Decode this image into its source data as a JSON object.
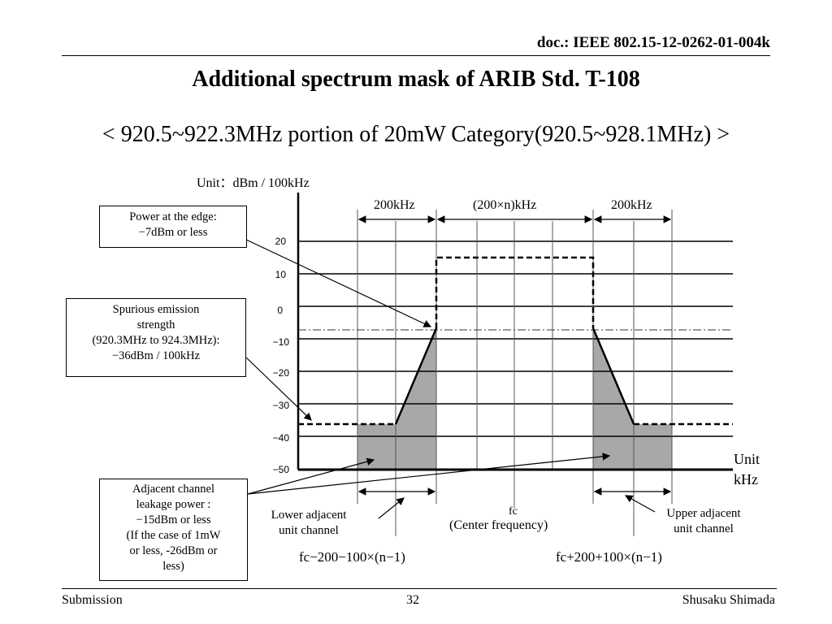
{
  "header": {
    "doc_id": "doc.: IEEE 802.15-12-0262-01-004k"
  },
  "title": "Additional spectrum mask of ARIB Std. T-108",
  "subtitle": "< 920.5~922.3MHz portion of 20mW Category(920.5~928.1MHz) >",
  "diagram": {
    "unit_label": "Unit：dBm / 100kHz",
    "x_unit_label": [
      "Unit",
      "kHz"
    ],
    "y_ticks": [
      "20",
      "10",
      "0",
      "−10",
      "−20",
      "−30",
      "−40",
      "−50"
    ],
    "dim_left": "200kHz",
    "dim_mid": "(200×n)kHz",
    "dim_right": "200kHz",
    "fc_label": "fc",
    "center_label": "(Center frequency)",
    "lower_label": [
      "Lower adjacent",
      "unit channel"
    ],
    "upper_label": [
      "Upper adjacent",
      "unit channel"
    ],
    "formula_left": "fc−200−100×(n−1)",
    "formula_right": "fc+200+100×(n−1)",
    "box_edge": [
      "Power at the edge:",
      "−7dBm or less"
    ],
    "box_spurious": [
      "Spurious emission",
      "strength",
      "(920.3MHz to 924.3MHz):",
      "−36dBm / 100kHz"
    ],
    "box_adjacent": [
      "Adjacent channel",
      "leakage power :",
      "−15dBm or less",
      "(If the case of 1mW",
      "or less, -26dBm or",
      "less)"
    ]
  },
  "footer": {
    "left": "Submission",
    "page": "32",
    "right": "Shusaku Shimada"
  }
}
